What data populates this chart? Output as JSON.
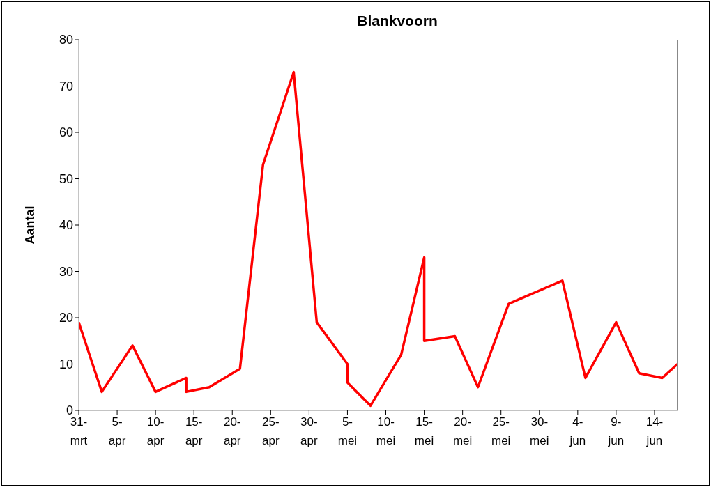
{
  "chart_data": {
    "type": "line",
    "title": "Blankvoorn",
    "ylabel": "Aantal",
    "x": [
      "--03-31",
      "--04-03",
      "--04-07",
      "--04-10",
      "--04-14",
      "--04-14",
      "--04-17",
      "--04-21",
      "--04-24",
      "--04-28",
      "--05-01",
      "--05-05",
      "--05-05",
      "--05-08",
      "--05-12",
      "--05-15",
      "--05-15",
      "--05-19",
      "--05-22",
      "--05-26",
      "--06-02",
      "--06-05",
      "--06-09",
      "--06-12",
      "--06-15",
      "--06-17"
    ],
    "series": [
      {
        "color": "#ff0000",
        "values": [
          19,
          4,
          14,
          4,
          7,
          4,
          5,
          9,
          53,
          73,
          19,
          10,
          6,
          1,
          12,
          33,
          15,
          16,
          5,
          23,
          28,
          7,
          19,
          8,
          7,
          10
        ]
      }
    ],
    "xlim": [
      "--03-31",
      "--06-17"
    ],
    "xticks": [
      {
        "value": "--03-31",
        "label": "31-\nmrt"
      },
      {
        "value": "--04-05",
        "label": "5-\napr"
      },
      {
        "value": "--04-10",
        "label": "10-\napr"
      },
      {
        "value": "--04-15",
        "label": "15-\napr"
      },
      {
        "value": "--04-20",
        "label": "20-\napr"
      },
      {
        "value": "--04-25",
        "label": "25-\napr"
      },
      {
        "value": "--04-30",
        "label": "30-\napr"
      },
      {
        "value": "--05-05",
        "label": "5-\nmei"
      },
      {
        "value": "--05-10",
        "label": "10-\nmei"
      },
      {
        "value": "--05-15",
        "label": "15-\nmei"
      },
      {
        "value": "--05-20",
        "label": "20-\nmei"
      },
      {
        "value": "--05-25",
        "label": "25-\nmei"
      },
      {
        "value": "--05-30",
        "label": "30-\nmei"
      },
      {
        "value": "--06-04",
        "label": "4-\njun"
      },
      {
        "value": "--06-09",
        "label": "9-\njun"
      },
      {
        "value": "--06-14",
        "label": "14-\njun"
      }
    ],
    "ylim": [
      0,
      80
    ],
    "yticks": [
      0,
      10,
      20,
      30,
      40,
      50,
      60,
      70,
      80
    ],
    "grid": false,
    "legend": false,
    "marker": "none",
    "line_style": "solid"
  }
}
